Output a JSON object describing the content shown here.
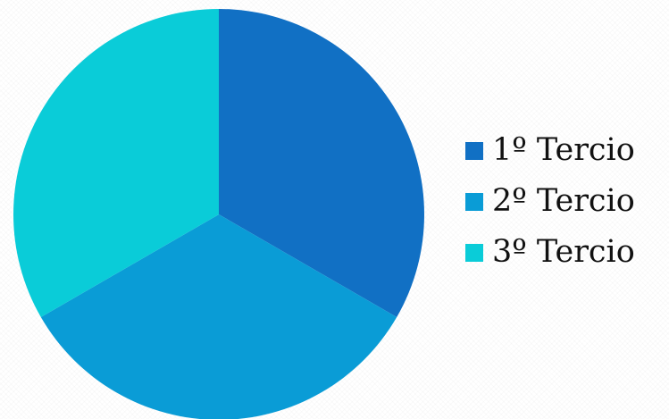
{
  "chart_data": {
    "type": "pie",
    "series": [
      {
        "name": "1º Tercio",
        "value": 33.33,
        "color": "#1170C4"
      },
      {
        "name": "2º Tercio",
        "value": 33.33,
        "color": "#0A9CD6"
      },
      {
        "name": "3º Tercio",
        "value": 33.33,
        "color": "#0ACCD8"
      }
    ],
    "start_angle_deg": 0,
    "direction": "clockwise",
    "legend": {
      "position": "right"
    },
    "title": ""
  }
}
